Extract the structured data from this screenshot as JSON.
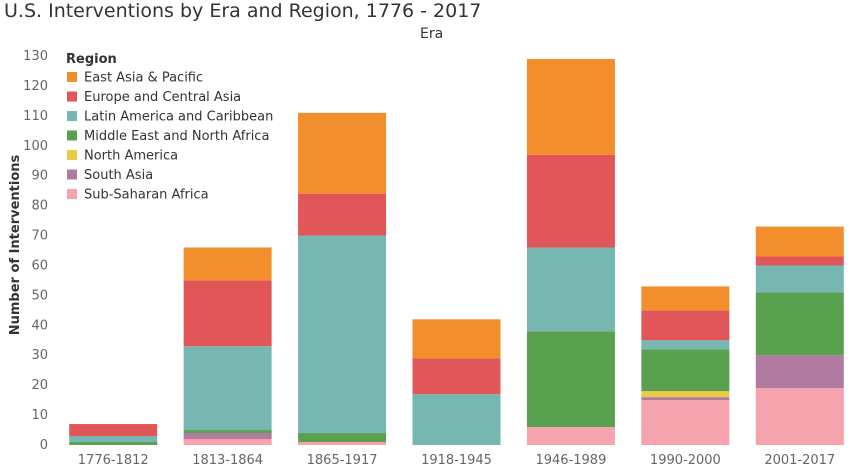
{
  "chart_data": {
    "type": "bar",
    "stacked": true,
    "title": "U.S. Interventions by Era and Region, 1776 - 2017",
    "column_header": "Era",
    "ylabel": "Number of Interventions",
    "ylim": [
      0,
      130
    ],
    "yticks": [
      0,
      10,
      20,
      30,
      40,
      50,
      60,
      70,
      80,
      90,
      100,
      110,
      120,
      130
    ],
    "legend_title": "Region",
    "legend_position": "top-left",
    "categories": [
      "1776-1812",
      "1813-1864",
      "1865-1917",
      "1918-1945",
      "1946-1989",
      "1990-2000",
      "2001-2017"
    ],
    "series": [
      {
        "name": "Sub-Saharan Africa",
        "color": "#f5a3ad",
        "values": [
          0,
          2,
          1,
          0,
          6,
          15,
          19
        ]
      },
      {
        "name": "South Asia",
        "color": "#b07aa1",
        "values": [
          0,
          2,
          0,
          0,
          0,
          1,
          11
        ]
      },
      {
        "name": "North America",
        "color": "#edc948",
        "values": [
          0,
          0,
          0,
          0,
          0,
          2,
          0
        ]
      },
      {
        "name": "Middle East and North Africa",
        "color": "#59a14f",
        "values": [
          1,
          1,
          3,
          0,
          32,
          14,
          21
        ]
      },
      {
        "name": "Latin America and Caribbean",
        "color": "#76b7b2",
        "values": [
          2,
          28,
          66,
          17,
          28,
          3,
          9
        ]
      },
      {
        "name": "Europe and Central Asia",
        "color": "#e15759",
        "values": [
          4,
          22,
          14,
          12,
          31,
          10,
          3
        ]
      },
      {
        "name": "East Asia & Pacific",
        "color": "#f28e2b",
        "values": [
          0,
          11,
          27,
          13,
          32,
          8,
          10
        ]
      }
    ],
    "legend_order": [
      "East Asia & Pacific",
      "Europe and Central Asia",
      "Latin America and Caribbean",
      "Middle East and North Africa",
      "North America",
      "South Asia",
      "Sub-Saharan Africa"
    ]
  }
}
